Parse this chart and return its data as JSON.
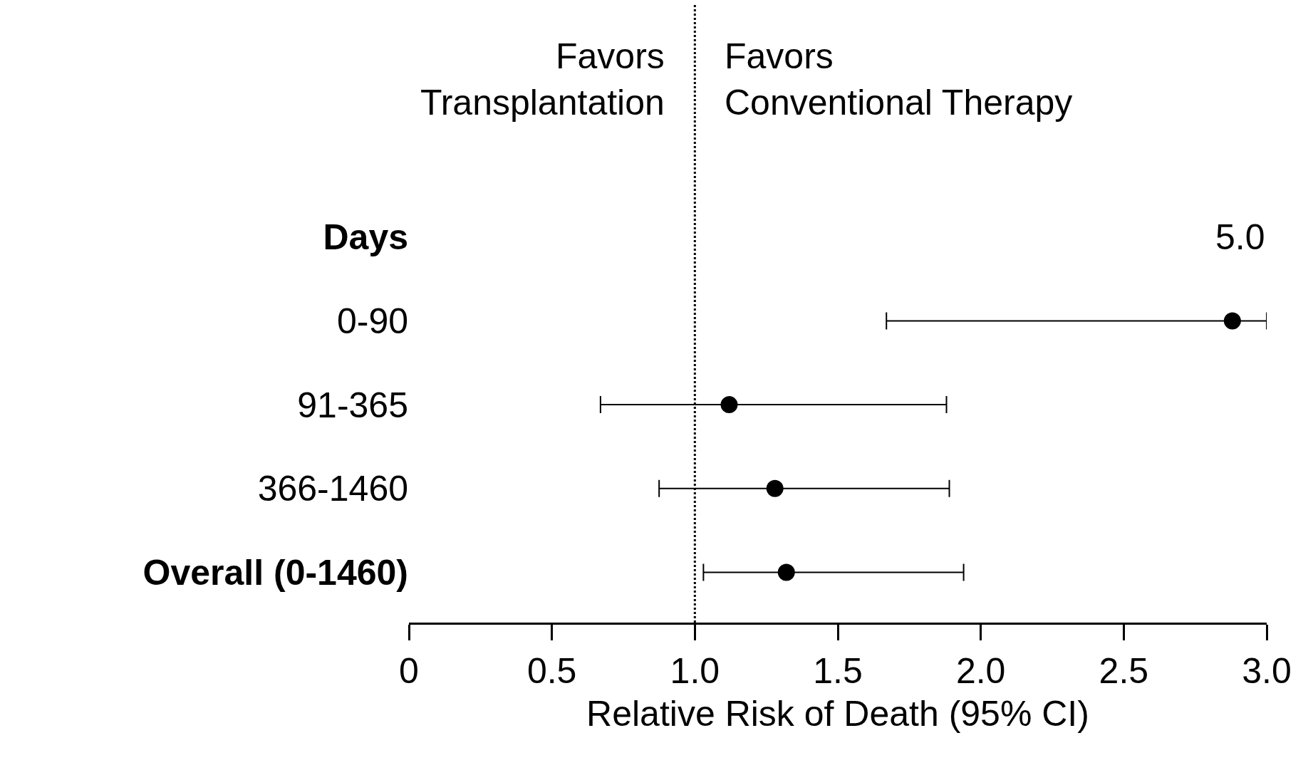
{
  "chart_data": {
    "type": "scatter",
    "xlabel": "Relative Risk of Death (95% CI)",
    "categories": [
      "Days",
      "0-90",
      "91-365",
      "366-1460",
      "Overall (0-1460)"
    ],
    "values": [
      null,
      2.88,
      1.12,
      1.28,
      1.32
    ],
    "errors": [
      null,
      [
        1.67,
        3.0
      ],
      [
        0.67,
        1.88
      ],
      [
        0.875,
        1.89
      ],
      [
        1.03,
        1.94
      ]
    ],
    "orientation": "horizontal",
    "color": "#000000",
    "marker": "circle",
    "xlim": [
      0,
      3.0
    ],
    "xticks": [
      0,
      0.5,
      {
        "value": 1.0,
        "label": "1.0"
      },
      1.5,
      {
        "value": 2.0,
        "label": "2.0"
      },
      2.5,
      {
        "value": 3.0,
        "label": "3.0"
      }
    ],
    "ref_lines": [
      {
        "axis": "x",
        "value": 1.0,
        "label": null,
        "line_style": "dotted",
        "color": "#000000"
      }
    ],
    "annotations": [
      "Favors\nTransplantation",
      "Favors\nConventional Therapy",
      "5.0"
    ],
    "legend": false
  }
}
